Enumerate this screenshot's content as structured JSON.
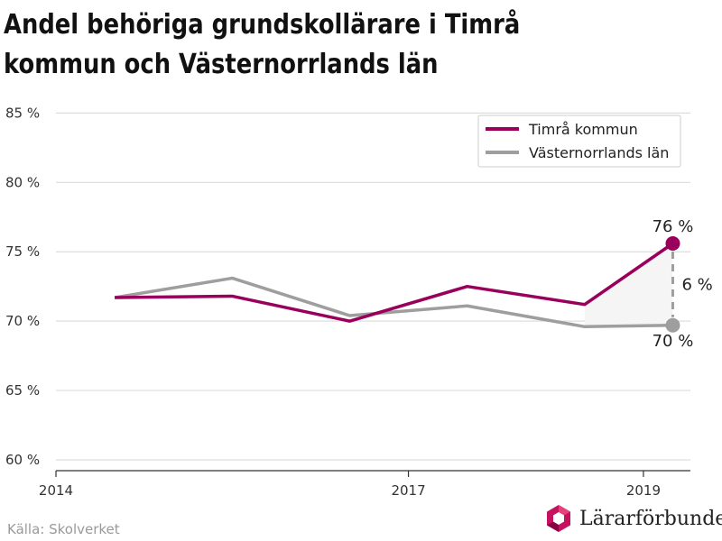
{
  "title": "Andel behöriga grundskollärare i Timrå kommun och Västernorrlands län",
  "source": "Källa: Skolverket",
  "brand": {
    "name": "Lärarförbundet",
    "logo_icon": "lararforbundet-logo-icon"
  },
  "colors": {
    "timra": "#99005c",
    "vasternorrland": "#9e9e9e",
    "grid": "#dddddd",
    "text": "#333333"
  },
  "chart_data": {
    "type": "line",
    "title": "Andel behöriga grundskollärare i Timrå kommun och Västernorrlands län",
    "xlabel": "",
    "ylabel": "",
    "x": [
      2014.5,
      2015.5,
      2016.5,
      2017.5,
      2018.5,
      2019.25
    ],
    "x_ticks": [
      2014,
      2017,
      2019
    ],
    "x_tick_labels": [
      "2014",
      "2017",
      "2019"
    ],
    "xlim": [
      2014,
      2019.4
    ],
    "ylim": [
      60,
      86
    ],
    "y_ticks": [
      60,
      65,
      70,
      75,
      80,
      85
    ],
    "y_tick_labels": [
      "60 %",
      "65 %",
      "70 %",
      "75 %",
      "80 %",
      "85 %"
    ],
    "grid": true,
    "legend_position": "top-right",
    "series": [
      {
        "name": "Timrå kommun",
        "values": [
          71.7,
          71.8,
          70.0,
          72.5,
          71.2,
          75.6
        ],
        "end_label": "76 %"
      },
      {
        "name": "Västernorrlands län",
        "values": [
          71.7,
          73.1,
          70.4,
          71.1,
          69.6,
          69.7
        ],
        "end_label": "70 %"
      }
    ],
    "difference_label": "6 %"
  }
}
